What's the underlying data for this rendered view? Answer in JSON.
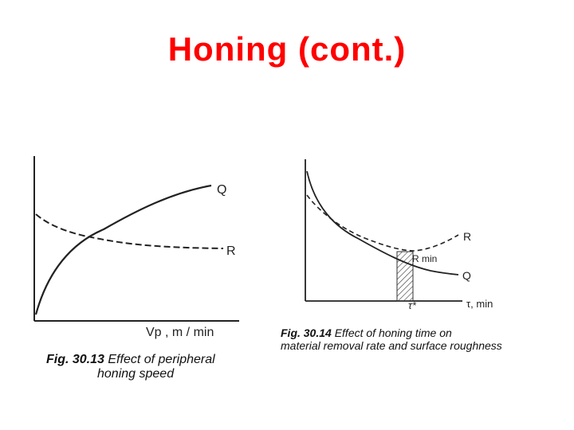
{
  "title": "Honing (cont.)",
  "fig1": {
    "curve_q_label": "Q",
    "curve_r_label": "R",
    "x_axis_label": "Vp , m / min",
    "caption_number": "Fig. 30.13",
    "caption_line1": "Effect of peripheral",
    "caption_line2": "honing speed"
  },
  "fig2": {
    "curve_r_label": "R",
    "curve_q_label": "Q",
    "rmin_label": "R min",
    "tau_opt_label": "τ*",
    "x_axis_label": "τ, min",
    "caption_number": "Fig. 30.14",
    "caption_line1": "Effect of honing time on",
    "caption_line2": "material removal rate and surface roughness"
  },
  "colors": {
    "title": "#ff0000",
    "ink": "#222222"
  }
}
